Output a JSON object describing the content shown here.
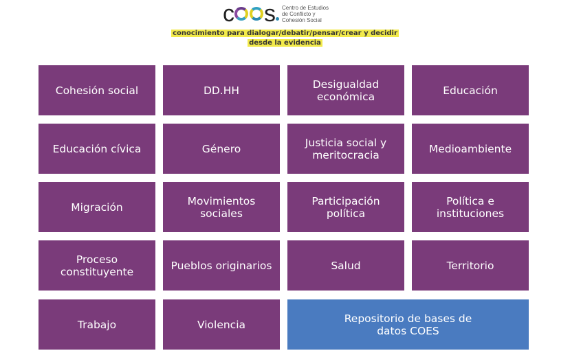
{
  "header": {
    "logo_text": "coes",
    "logo_subtitle": [
      "Centro de Estudios",
      "de Conflicto y",
      "Cohesión Social"
    ],
    "tagline": [
      "conocimiento para dialogar/debatir/pensar/crear y decidir",
      "desde la evidencia"
    ]
  },
  "colors": {
    "tile": "#7a3b7a",
    "repository": "#4a7bc0",
    "highlight": "#f2ea4a"
  },
  "tiles": [
    {
      "label": "Cohesión social"
    },
    {
      "label": "DD.HH"
    },
    {
      "label": "Desigualdad económica"
    },
    {
      "label": "Educación"
    },
    {
      "label": "Educación cívica"
    },
    {
      "label": "Género"
    },
    {
      "label": "Justicia social y meritocracia"
    },
    {
      "label": "Medioambiente"
    },
    {
      "label": "Migración"
    },
    {
      "label": "Movimientos sociales"
    },
    {
      "label": "Participación política"
    },
    {
      "label": "Política e instituciones"
    },
    {
      "label": "Proceso constituyente"
    },
    {
      "label": "Pueblos originarios"
    },
    {
      "label": "Salud"
    },
    {
      "label": "Territorio"
    },
    {
      "label": "Trabajo"
    },
    {
      "label": "Violencia"
    },
    {
      "label": "Repositorio de bases de datos COES"
    }
  ]
}
